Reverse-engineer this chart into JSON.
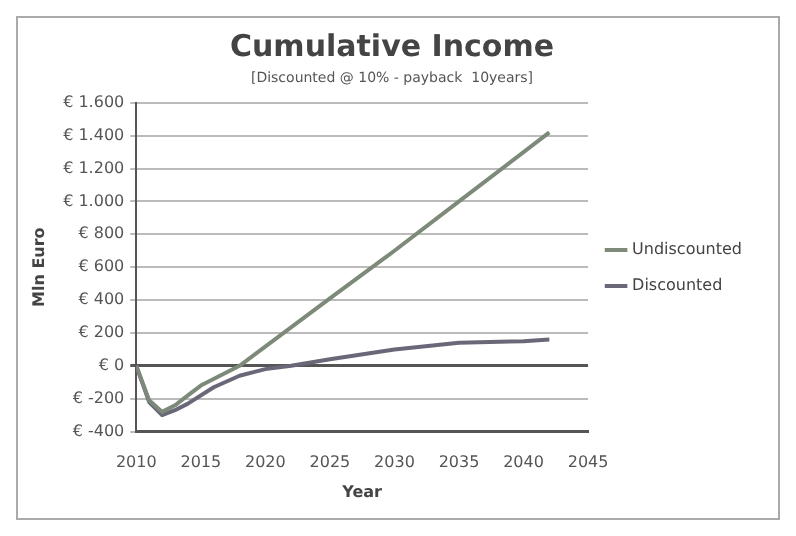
{
  "chart_data": {
    "type": "line",
    "title": "Cumulative Income",
    "subtitle": "[Discounted @ 10% - payback  10years]",
    "xlabel": "Year",
    "ylabel": "Mln Euro",
    "xlim": [
      2010,
      2045
    ],
    "xticks": [
      2010,
      2015,
      2020,
      2025,
      2030,
      2035,
      2040,
      2045
    ],
    "ylim": [
      -400,
      1600
    ],
    "yticks": [
      {
        "value": -400,
        "label": "€ -400"
      },
      {
        "value": -200,
        "label": "€ -200"
      },
      {
        "value": 0,
        "label": "€ 0"
      },
      {
        "value": 200,
        "label": "€ 200"
      },
      {
        "value": 400,
        "label": "€ 400"
      },
      {
        "value": 600,
        "label": "€ 600"
      },
      {
        "value": 800,
        "label": "€ 800"
      },
      {
        "value": 1000,
        "label": "€ 1.000"
      },
      {
        "value": 1200,
        "label": "€ 1.200"
      },
      {
        "value": 1400,
        "label": "€ 1.400"
      },
      {
        "value": 1600,
        "label": "€ 1.600"
      }
    ],
    "grid": "y",
    "legend": "right",
    "marker": "none",
    "line_style": "solid",
    "series": [
      {
        "name": "Undiscounted",
        "color": "#7d8a7a",
        "x": [
          2010,
          2011,
          2012,
          2013,
          2014,
          2015,
          2018,
          2025,
          2030,
          2035,
          2042
        ],
        "values": [
          0,
          -210,
          -280,
          -240,
          -180,
          -120,
          0,
          410,
          700,
          1000,
          1420
        ]
      },
      {
        "name": "Discounted",
        "color": "#6a6878",
        "x": [
          2010,
          2011,
          2012,
          2013,
          2014,
          2016,
          2018,
          2020,
          2022,
          2025,
          2030,
          2035,
          2040,
          2042
        ],
        "values": [
          0,
          -220,
          -300,
          -270,
          -230,
          -130,
          -60,
          -20,
          0,
          40,
          100,
          140,
          150,
          160
        ]
      }
    ]
  }
}
